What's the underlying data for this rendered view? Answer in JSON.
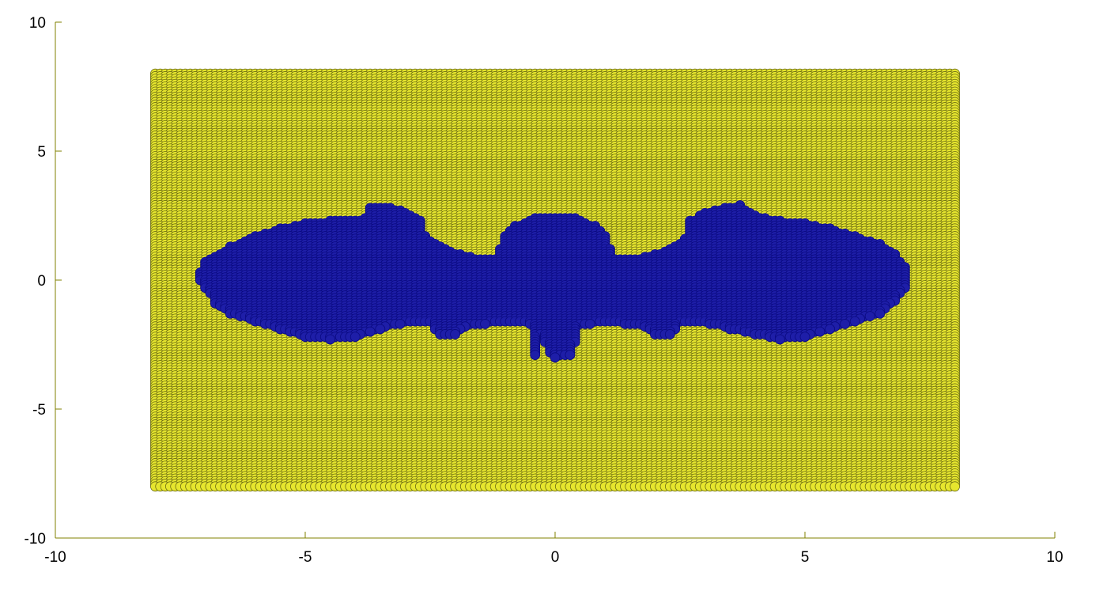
{
  "chart_data": {
    "type": "scatter",
    "title": "",
    "xlabel": "",
    "ylabel": "",
    "xlim": [
      -10,
      10
    ],
    "ylim": [
      -10,
      10
    ],
    "grid": false,
    "x_ticks": [
      {
        "value": -10,
        "label": "-10"
      },
      {
        "value": -5,
        "label": "-5"
      },
      {
        "value": 0,
        "label": "0"
      },
      {
        "value": 5,
        "label": "5"
      },
      {
        "value": 10,
        "label": "10"
      }
    ],
    "y_ticks": [
      {
        "value": 10,
        "label": "10"
      },
      {
        "value": 5,
        "label": "5"
      },
      {
        "value": 0,
        "label": "0"
      },
      {
        "value": -5,
        "label": "-5"
      },
      {
        "value": -10,
        "label": "-10"
      }
    ],
    "grid_extent": {
      "x": [
        -8,
        8
      ],
      "y": [
        -8,
        8
      ],
      "step": 0.1
    },
    "series": [
      {
        "role": "outside",
        "color": "#e6e62e",
        "edge_color": "#6b6b14",
        "region": "all grid points in [-8, 8] x [-8, 8] not inside the bat shape"
      },
      {
        "role": "inside",
        "color": "#1e1ea8",
        "edge_color": "#0a0a80",
        "upper_boundary": [
          [
            -7.1,
            0.3
          ],
          [
            -7.0,
            0.7
          ],
          [
            -6.5,
            1.3
          ],
          [
            -6.0,
            1.7
          ],
          [
            -5.5,
            2.0
          ],
          [
            -5.0,
            2.2
          ],
          [
            -4.5,
            2.3
          ],
          [
            -4.0,
            2.35
          ],
          [
            -3.8,
            2.4
          ],
          [
            -3.8,
            2.8
          ],
          [
            -3.4,
            2.85
          ],
          [
            -3.0,
            2.65
          ],
          [
            -2.7,
            2.3
          ],
          [
            -2.6,
            1.7
          ],
          [
            -2.1,
            1.1
          ],
          [
            -1.5,
            0.8
          ],
          [
            -1.2,
            0.8
          ],
          [
            -1.0,
            1.7
          ],
          [
            -0.8,
            2.1
          ],
          [
            -0.4,
            2.4
          ],
          [
            0.0,
            2.4
          ],
          [
            0.4,
            2.4
          ],
          [
            0.8,
            2.1
          ],
          [
            1.0,
            1.7
          ],
          [
            1.2,
            0.8
          ],
          [
            1.6,
            0.8
          ],
          [
            2.2,
            1.1
          ],
          [
            2.6,
            1.6
          ],
          [
            2.7,
            2.3
          ],
          [
            3.0,
            2.6
          ],
          [
            3.4,
            2.85
          ],
          [
            3.7,
            2.9
          ],
          [
            4.0,
            2.5
          ],
          [
            4.5,
            2.3
          ],
          [
            5.0,
            2.2
          ],
          [
            5.5,
            2.0
          ],
          [
            6.0,
            1.7
          ],
          [
            6.5,
            1.4
          ],
          [
            6.8,
            1.0
          ],
          [
            7.0,
            0.5
          ],
          [
            7.1,
            0.1
          ]
        ],
        "lower_boundary": [
          [
            -7.1,
            0.0
          ],
          [
            -7.0,
            -0.3
          ],
          [
            -6.8,
            -0.9
          ],
          [
            -6.5,
            -1.3
          ],
          [
            -6.0,
            -1.6
          ],
          [
            -5.5,
            -1.9
          ],
          [
            -5.0,
            -2.2
          ],
          [
            -4.5,
            -2.3
          ],
          [
            -4.0,
            -2.2
          ],
          [
            -3.5,
            -1.9
          ],
          [
            -3.0,
            -1.65
          ],
          [
            -2.5,
            -1.6
          ],
          [
            -2.4,
            -1.9
          ],
          [
            -2.3,
            -2.1
          ],
          [
            -2.0,
            -2.1
          ],
          [
            -1.7,
            -1.75
          ],
          [
            -1.0,
            -1.65
          ],
          [
            -0.5,
            -1.7
          ],
          [
            -0.3,
            -2.1
          ],
          [
            -0.5,
            -2.4
          ],
          [
            -0.4,
            -2.9
          ],
          [
            -0.05,
            -3.05
          ],
          [
            0.3,
            -2.9
          ],
          [
            0.4,
            -2.4
          ],
          [
            0.3,
            -2.1
          ],
          [
            0.5,
            -1.75
          ],
          [
            1.0,
            -1.65
          ],
          [
            1.7,
            -1.75
          ],
          [
            2.0,
            -2.1
          ],
          [
            2.3,
            -2.15
          ],
          [
            2.4,
            -1.9
          ],
          [
            2.5,
            -1.6
          ],
          [
            3.0,
            -1.65
          ],
          [
            3.5,
            -1.9
          ],
          [
            4.0,
            -2.1
          ],
          [
            4.5,
            -2.3
          ],
          [
            5.0,
            -2.2
          ],
          [
            5.5,
            -1.9
          ],
          [
            6.0,
            -1.6
          ],
          [
            6.5,
            -1.3
          ],
          [
            6.8,
            -0.8
          ],
          [
            7.0,
            -0.3
          ],
          [
            7.1,
            0.1
          ]
        ]
      }
    ]
  }
}
